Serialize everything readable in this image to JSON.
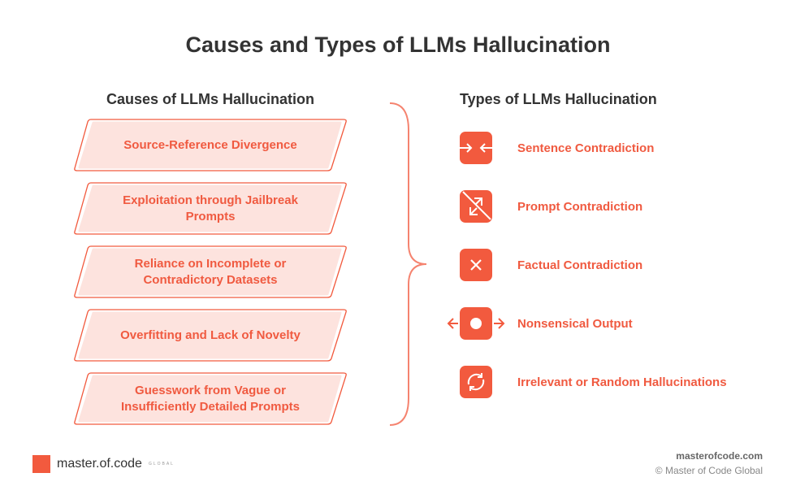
{
  "title": "Causes and Types of LLMs Hallucination",
  "causes": {
    "heading": "Causes of LLMs Hallucination",
    "items": [
      {
        "line1": "Source-Reference Divergence",
        "line2": ""
      },
      {
        "line1": "Exploitation through Jailbreak",
        "line2": "Prompts"
      },
      {
        "line1": "Reliance on Incomplete or",
        "line2": "Contradictory Datasets"
      },
      {
        "line1": "Overfitting and Lack of Novelty",
        "line2": ""
      },
      {
        "line1": "Guesswork from Vague or",
        "line2": "Insufficiently Detailed Prompts"
      }
    ]
  },
  "types": {
    "heading": "Types of LLMs Hallucination",
    "items": [
      {
        "label": "Sentence Contradiction",
        "icon": "arrows-inward-icon"
      },
      {
        "label": "Prompt Contradiction",
        "icon": "crossed-arrows-icon"
      },
      {
        "label": "Factual Contradiction",
        "icon": "x-icon"
      },
      {
        "label": "Nonsensical Output",
        "icon": "dot-arrows-outward-icon"
      },
      {
        "label": "Irrelevant or Random Hallucinations",
        "icon": "refresh-icon"
      }
    ]
  },
  "footer": {
    "brand": "master.of.code",
    "brand_sub": "GLOBAL",
    "site": "masterofcode.com",
    "copyright": "© Master of Code Global"
  },
  "colors": {
    "accent": "#f25a3e",
    "fill": "#fde3de",
    "text": "#333333"
  }
}
